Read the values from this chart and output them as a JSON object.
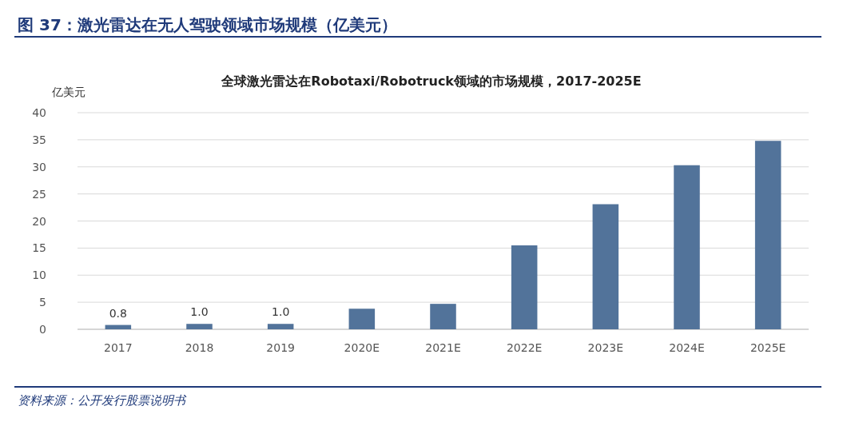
{
  "chart_data": {
    "type": "bar",
    "title": "图 37：激光雷达在无人驾驶领域市场规模（亿美元）",
    "subtitle": "全球激光雷达在Robotaxi/Robotruck领域的市场规模，2017-2025E",
    "ylabel": "亿美元",
    "annotations": [
      "资料来源：公开发行股票说明书"
    ],
    "categories": [
      "2017",
      "2018",
      "2019",
      "2020E",
      "2021E",
      "2022E",
      "2023E",
      "2024E",
      "2025E"
    ],
    "values": [
      0.8,
      1.0,
      1.0,
      3.8,
      4.7,
      15.5,
      23.1,
      30.3,
      34.8
    ],
    "value_labels": [
      "0.8",
      "1.0",
      "1.0",
      null,
      null,
      null,
      null,
      null,
      null
    ],
    "color": "#52739a",
    "ylim": [
      0,
      40
    ],
    "yticks": [
      0,
      5,
      10,
      15,
      20,
      25,
      30,
      35,
      40
    ],
    "grid": "y"
  }
}
